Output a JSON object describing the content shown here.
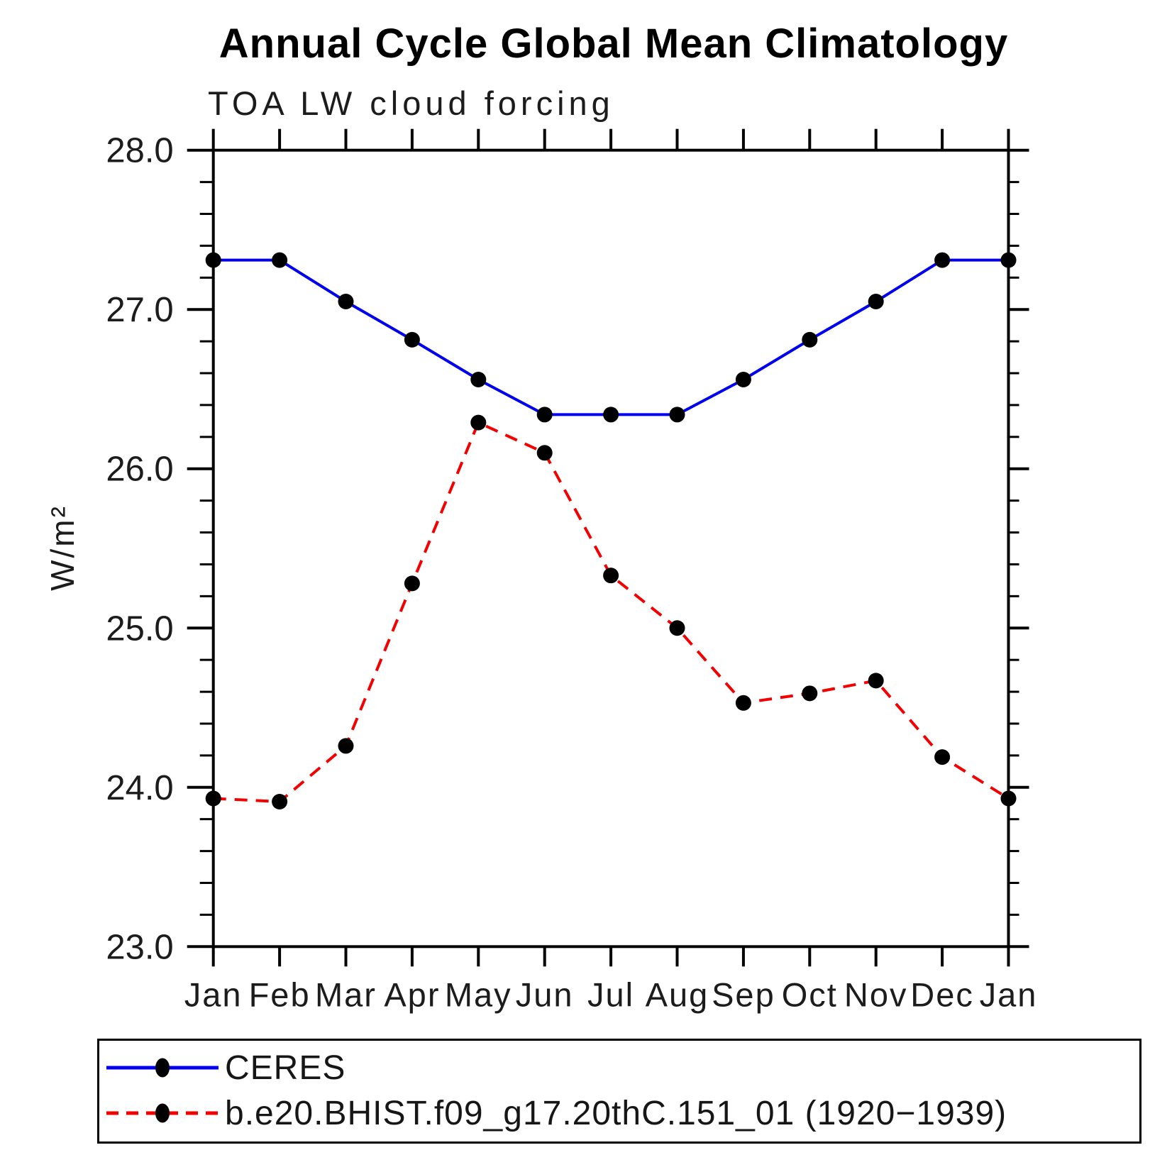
{
  "page": {
    "title": "Annual Cycle Global Mean Climatology",
    "subtitle": "TOA LW cloud forcing"
  },
  "chart_data": {
    "type": "line",
    "title": "Annual Cycle Global Mean Climatology",
    "subtitle": "TOA LW cloud forcing",
    "xlabel": "",
    "ylabel": "W/m²",
    "categories": [
      "Jan",
      "Feb",
      "Mar",
      "Apr",
      "May",
      "Jun",
      "Jul",
      "Aug",
      "Sep",
      "Oct",
      "Nov",
      "Dec",
      "Jan"
    ],
    "ylim": [
      23.0,
      28.0
    ],
    "ytick_labels": [
      "23.0",
      "24.0",
      "25.0",
      "26.0",
      "27.0",
      "28.0"
    ],
    "ytick_values": [
      23.0,
      24.0,
      25.0,
      26.0,
      27.0,
      28.0
    ],
    "y_minor_step": 0.2,
    "grid": "off",
    "legend_position": "bottom",
    "marker": "filled-circle",
    "marker_color": "#000000",
    "series": [
      {
        "name": "CERES",
        "style": "solid",
        "color": "#0000ee",
        "values": [
          27.31,
          27.31,
          27.05,
          26.81,
          26.56,
          26.34,
          26.34,
          26.34,
          26.56,
          26.81,
          27.05,
          27.31,
          27.31
        ]
      },
      {
        "name": "b.e20.BHIST.f09_g17.20thC.151_01 (1920−1939)",
        "style": "dashed",
        "color": "#f40000",
        "values": [
          23.93,
          23.91,
          24.26,
          25.28,
          26.29,
          26.1,
          25.33,
          25.0,
          24.53,
          24.59,
          24.67,
          24.19,
          23.93
        ]
      }
    ]
  },
  "legend": {
    "items": [
      {
        "label": "CERES"
      },
      {
        "label": "b.e20.BHIST.f09_g17.20thC.151_01 (1920−1939)"
      }
    ]
  }
}
